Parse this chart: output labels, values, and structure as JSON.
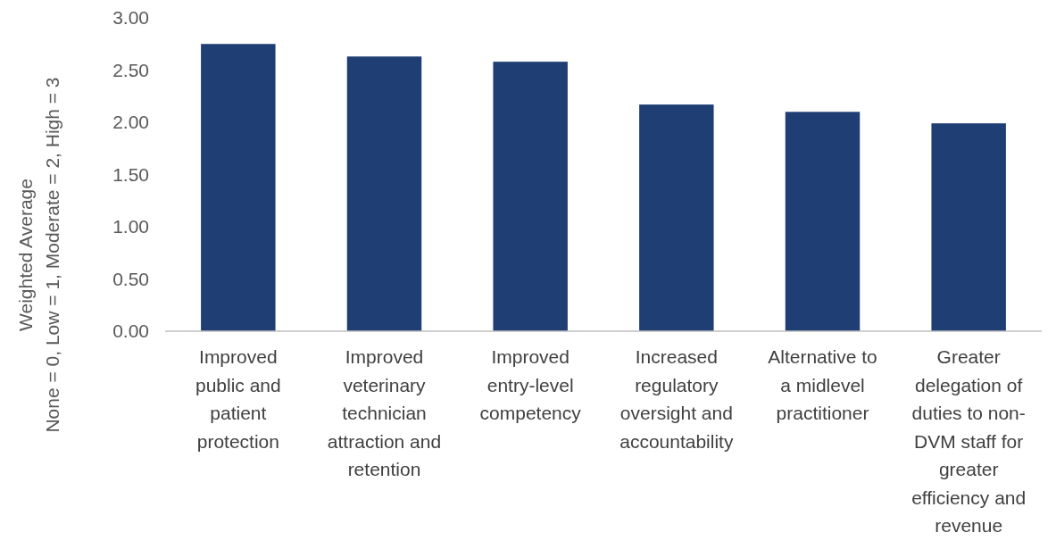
{
  "chart_data": {
    "type": "bar",
    "ylabel": "Weighted Average\nNone = 0, Low = 1, Moderate = 2, High = 3",
    "categories": [
      "Improved\npublic and\npatient\nprotection",
      "Improved\nveterinary\ntechnician\nattraction and\nretention",
      "Improved\nentry-level\ncompetency",
      "Increased\nregulatory\noversight and\naccountability",
      "Alternative to\na midlevel\npractitioner",
      "Greater\ndelegation of\nduties to non-\nDVM staff for\ngreater\nefficiency and\nrevenue"
    ],
    "values": [
      2.75,
      2.63,
      2.58,
      2.17,
      2.1,
      1.99
    ],
    "color": "#1f3e74",
    "ylim": [
      0,
      3
    ],
    "yticks": [
      {
        "value": 0,
        "label": "0.00"
      },
      {
        "value": 0.5,
        "label": "0.50"
      },
      {
        "value": 1,
        "label": "1.00"
      },
      {
        "value": 1.5,
        "label": "1.50"
      },
      {
        "value": 2,
        "label": "2.00"
      },
      {
        "value": 2.5,
        "label": "2.50"
      },
      {
        "value": 3,
        "label": "3.00"
      }
    ],
    "grid": false
  }
}
